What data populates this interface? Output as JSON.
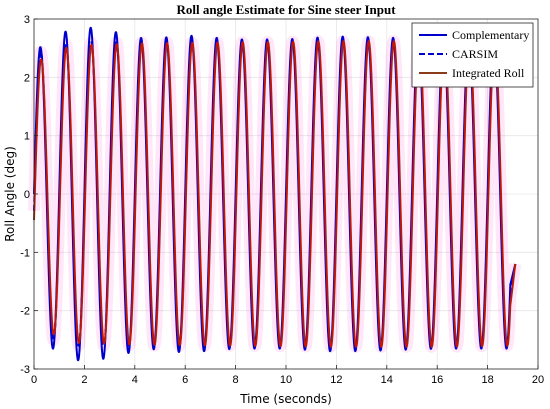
{
  "chart_data": {
    "type": "line",
    "title": "Roll angle Estimate for Sine steer Input",
    "xlabel": "Time (seconds)",
    "ylabel": "Roll Angle (deg)",
    "xlim": [
      0,
      20
    ],
    "ylim": [
      -3,
      3
    ],
    "xticks": [
      "0",
      "2",
      "4",
      "6",
      "8",
      "10",
      "12",
      "14",
      "16",
      "18",
      "20"
    ],
    "yticks": [
      "3",
      "2",
      "1",
      "0",
      "-1",
      "-2",
      "-3"
    ],
    "grid": true,
    "legend_position": "top-right",
    "signal": {
      "frequency_hz": 1.0,
      "start_s": 0.0,
      "end_s": 19.1,
      "end_value_deg": -1.2
    },
    "series": [
      {
        "name": "Complementary",
        "color": "#0000cc",
        "style": "solid",
        "amplitude_deg": [
          [
            0.0,
            2.45
          ],
          [
            1.5,
            2.85
          ],
          [
            2.5,
            2.85
          ],
          [
            3.5,
            2.75
          ],
          [
            4.5,
            2.65
          ],
          [
            6.0,
            2.72
          ],
          [
            8.0,
            2.65
          ],
          [
            10.0,
            2.65
          ],
          [
            12.0,
            2.7
          ],
          [
            14.0,
            2.68
          ],
          [
            16.0,
            2.65
          ],
          [
            19.1,
            2.65
          ]
        ]
      },
      {
        "name": "CARSIM",
        "color": "#0000cc",
        "style": "dashed",
        "amplitude_deg": [
          [
            0.0,
            2.4
          ],
          [
            1.5,
            2.6
          ],
          [
            4.0,
            2.6
          ],
          [
            8.0,
            2.6
          ],
          [
            12.0,
            2.62
          ],
          [
            16.0,
            2.62
          ],
          [
            19.1,
            2.6
          ]
        ]
      },
      {
        "name": "Integrated Roll",
        "color": "#8b3a1a",
        "style": "solid",
        "amplitude_deg": [
          [
            0.0,
            2.25
          ],
          [
            1.5,
            2.55
          ],
          [
            4.0,
            2.58
          ],
          [
            8.0,
            2.6
          ],
          [
            12.0,
            2.62
          ],
          [
            16.0,
            2.62
          ],
          [
            19.1,
            2.6
          ]
        ]
      }
    ]
  },
  "figure": {
    "background": "#ffffff",
    "grid_color": "#e6e6e6",
    "axis_color": "#262626",
    "highlight_color": "#ff33cc",
    "overlay_color": "#e60000"
  }
}
